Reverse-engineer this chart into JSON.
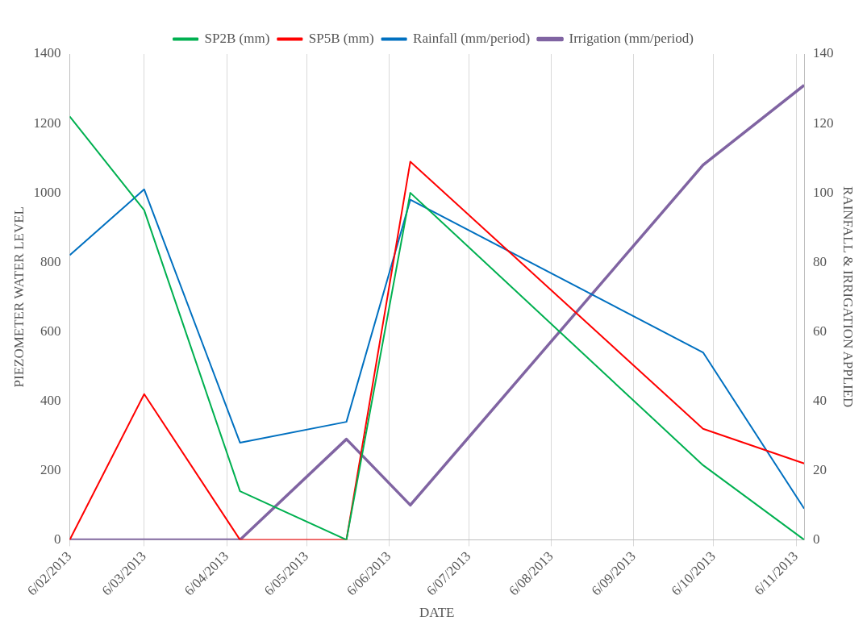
{
  "chart_data": {
    "type": "line",
    "xlabel": "DATE",
    "ylabel": "PIEZOMETER WATER LEVEL",
    "y2label": "RAINFALL & IRRIGATION APPLIED",
    "x": [
      "2013-02-06",
      "2013-03-06",
      "2013-04-11",
      "2013-05-21",
      "2013-06-14",
      "2013-10-02",
      "2013-11-09"
    ],
    "series": [
      {
        "name": "SP2B (mm)",
        "color": "#00b050",
        "values": [
          1220,
          950,
          140,
          0,
          1000,
          215,
          0
        ]
      },
      {
        "name": "SP5B (mm)",
        "color": "#ff0000",
        "values": [
          0,
          420,
          0,
          0,
          1090,
          320,
          220
        ]
      },
      {
        "name": "Rainfall (mm/period)",
        "color": "#0070c0",
        "axis": "y2",
        "values": [
          82,
          101,
          28,
          34,
          98,
          54,
          9
        ]
      },
      {
        "name": "Irrigation (mm/period)",
        "color": "#8064a2",
        "axis": "y2",
        "values": [
          0,
          0,
          0,
          29,
          10,
          108,
          131
        ]
      }
    ],
    "xlim": [
      "2013-02-06",
      "2013-11-09"
    ],
    "xticks": [
      {
        "value": "2013-02-06",
        "label": "6/02/2013"
      },
      {
        "value": "2013-03-06",
        "label": "6/03/2013"
      },
      {
        "value": "2013-04-06",
        "label": "6/04/2013"
      },
      {
        "value": "2013-05-06",
        "label": "6/05/2013"
      },
      {
        "value": "2013-06-06",
        "label": "6/06/2013"
      },
      {
        "value": "2013-07-06",
        "label": "6/07/2013"
      },
      {
        "value": "2013-08-06",
        "label": "6/08/2013"
      },
      {
        "value": "2013-09-06",
        "label": "6/09/2013"
      },
      {
        "value": "2013-10-06",
        "label": "6/10/2013"
      },
      {
        "value": "2013-11-06",
        "label": "6/11/2013"
      }
    ],
    "ylim": [
      0,
      1400
    ],
    "yticks": [
      0,
      200,
      400,
      600,
      800,
      1000,
      1200,
      1400
    ],
    "y2lim": [
      0,
      140
    ],
    "y2ticks": [
      0,
      20,
      40,
      60,
      80,
      100,
      120,
      140
    ],
    "grid": "x",
    "legend": "top",
    "marker": "none",
    "line_style": "solid"
  }
}
